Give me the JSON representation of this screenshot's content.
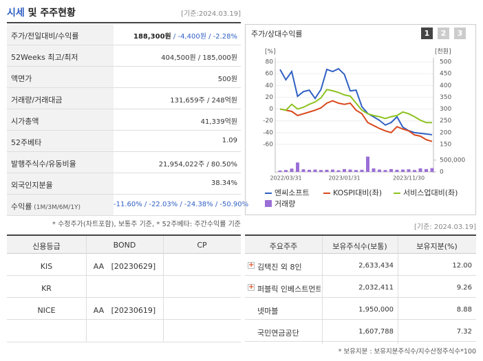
{
  "header": {
    "title": "시세",
    "title_rest": " 및 주주현황",
    "date": "[기준:2024.03.19]"
  },
  "quote_table": {
    "rows": [
      {
        "label": "주가/전일대비/수익률",
        "value": "188,300원",
        "value_rest": " / -4,400원 / -2.28%",
        "value_rest_color": "#2f5fc4"
      },
      {
        "label": "52Weeks 최고/최저",
        "value": "404,500원 / 185,000원"
      },
      {
        "label": "액면가",
        "value": "500원"
      },
      {
        "label": "거래량/거래대금",
        "value": "131,659주 / 248억원"
      },
      {
        "label": "시가총액",
        "value": "41,339억원"
      },
      {
        "label": "52주베타",
        "value": "1.09"
      },
      {
        "label": "발행주식수/유동비율",
        "value": "21,954,022주 / 80.50%"
      },
      {
        "label": "외국인지분율",
        "value": "38.34%"
      },
      {
        "label": "수익률",
        "label_note": " (1M/3M/6M/1Y)",
        "value": "-11.60% / -22.03% / -24.38% / -50.90%",
        "value_color": "#2f5fc4"
      }
    ],
    "note": "* 수정주가(차트포함), 보통주 기준, * 52주베타: 주간수익률 기준"
  },
  "chart_data": {
    "type": "line",
    "title": "주가/상대수익률",
    "buttons": [
      "1",
      "2",
      "3"
    ],
    "ylabel": "[%]",
    "y2label": "[천원]",
    "categories": [
      null,
      "2022/03/31",
      null,
      null,
      null,
      null,
      null,
      null,
      null,
      null,
      null,
      "2023/01/31",
      null,
      null,
      null,
      null,
      null,
      null,
      null,
      null,
      null,
      null,
      "2023/11/30",
      null,
      null,
      null,
      null
    ],
    "ylim": [
      -60,
      80
    ],
    "yticks": [
      80,
      60,
      40,
      20,
      0,
      -20,
      -40,
      -60
    ],
    "y2lim": [
      150,
      500
    ],
    "y2ticks": [
      500,
      450,
      400,
      350,
      300,
      250,
      200,
      150
    ],
    "grid": true,
    "series": [
      {
        "name": "엔씨소프트",
        "color": "#2f5fc4",
        "axis": "y2",
        "values": [
          468,
          424,
          459,
          354,
          374,
          380,
          345,
          383,
          468,
          459,
          471,
          447,
          377,
          380,
          310,
          281,
          267,
          252,
          232,
          243,
          267,
          223,
          208,
          200,
          197,
          194,
          191
        ]
      },
      {
        "name": "KOSPI대비(좌)",
        "color": "#d9481c",
        "values": [
          0,
          -2,
          -4,
          -11,
          -8,
          -5,
          -2,
          2,
          10,
          14,
          10,
          8,
          10,
          -2,
          -8,
          -23,
          -28,
          -33,
          -37,
          -40,
          -30,
          -34,
          -37,
          -44,
          -46,
          -52,
          -55
        ]
      },
      {
        "name": "서비스업대비(좌)",
        "color": "#8cc21f",
        "values": [
          0,
          -2,
          8,
          0,
          3,
          8,
          12,
          19,
          33,
          31,
          28,
          24,
          22,
          10,
          -2,
          -8,
          -11,
          -13,
          -16,
          -13,
          -11,
          -5,
          -8,
          -13,
          -19,
          -23,
          -23
        ]
      }
    ],
    "volume": {
      "name": "거래량",
      "color": "#9b6fd6",
      "ylim": [
        0,
        700000
      ],
      "yticks": [
        {
          "value": 500000,
          "label": "500,000"
        },
        0
      ],
      "values": [
        60000,
        80000,
        140000,
        400000,
        110000,
        90000,
        100000,
        80000,
        90000,
        100000,
        70000,
        120000,
        100000,
        80000,
        90000,
        650000,
        150000,
        100000,
        80000,
        120000,
        90000,
        100000,
        110000,
        80000,
        150000,
        120000,
        160000
      ]
    }
  },
  "credit_table": {
    "headers": [
      "신용등급",
      "BOND",
      "CP"
    ],
    "rows": [
      {
        "agency": "KIS",
        "bond": "AA   [20230629]"
      },
      {
        "agency": "KR"
      },
      {
        "agency": "NICE",
        "bond": "AA   [20230619]"
      }
    ]
  },
  "holder_table": {
    "date": "[기준: 2024.03.19]",
    "headers": [
      "주요주주",
      "보유주식수(보통)",
      "보유지분(%)"
    ],
    "rows": [
      {
        "name": "김택진 외 8인",
        "shares": "2,633,434",
        "pct": "12.00",
        "icon": true
      },
      {
        "name": "퍼블릭 인베스트먼트 ···",
        "shares": "2,032,411",
        "pct": "9.26",
        "icon": true
      },
      {
        "name": "넷마블",
        "shares": "1,950,000",
        "pct": "8.88"
      },
      {
        "name": "국민연금공단",
        "shares": "1,607,788",
        "pct": "7.32"
      }
    ],
    "note": "* 보유지분 : 보유지분주식수/지수산정주식수*100"
  }
}
